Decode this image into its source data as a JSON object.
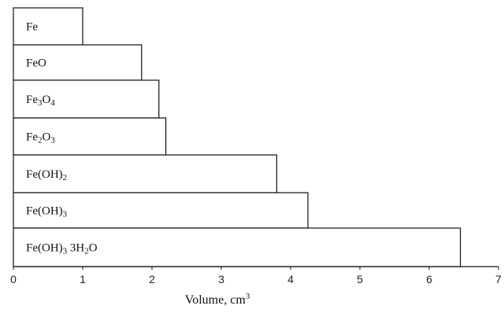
{
  "chart_data": {
    "type": "bar",
    "orientation": "horizontal",
    "categories": [
      {
        "base": "Fe",
        "parts": [
          {
            "t": "Fe"
          }
        ]
      },
      {
        "base": "FeO",
        "parts": [
          {
            "t": "FeO"
          }
        ]
      },
      {
        "base": "Fe3O4",
        "parts": [
          {
            "t": "Fe"
          },
          {
            "t": "3",
            "sub": true
          },
          {
            "t": "O"
          },
          {
            "t": "4",
            "sub": true
          }
        ]
      },
      {
        "base": "Fe2O3",
        "parts": [
          {
            "t": "Fe"
          },
          {
            "t": "2",
            "sub": true
          },
          {
            "t": "O"
          },
          {
            "t": "3",
            "sub": true
          }
        ]
      },
      {
        "base": "Fe(OH)2",
        "parts": [
          {
            "t": "Fe(OH)"
          },
          {
            "t": "2",
            "sub": true
          }
        ]
      },
      {
        "base": "Fe(OH)3",
        "parts": [
          {
            "t": "Fe(OH)"
          },
          {
            "t": "3",
            "sub": true
          }
        ]
      },
      {
        "base": "Fe(OH)3 3H2O",
        "parts": [
          {
            "t": "Fe(OH)"
          },
          {
            "t": "3",
            "sub": true
          },
          {
            "t": " 3H"
          },
          {
            "t": "2",
            "sub": true
          },
          {
            "t": "O"
          }
        ]
      }
    ],
    "values": [
      1.0,
      1.85,
      2.1,
      2.2,
      3.8,
      4.25,
      6.45
    ],
    "xlabel": {
      "text": "Volume, cm",
      "sup": "3"
    },
    "xlim": [
      0,
      7
    ],
    "xticks": [
      "0",
      "1",
      "2",
      "3",
      "4",
      "5",
      "6",
      "7"
    ],
    "grid": false,
    "bar_fill": "#ffffff",
    "bar_stroke": "#111111"
  }
}
